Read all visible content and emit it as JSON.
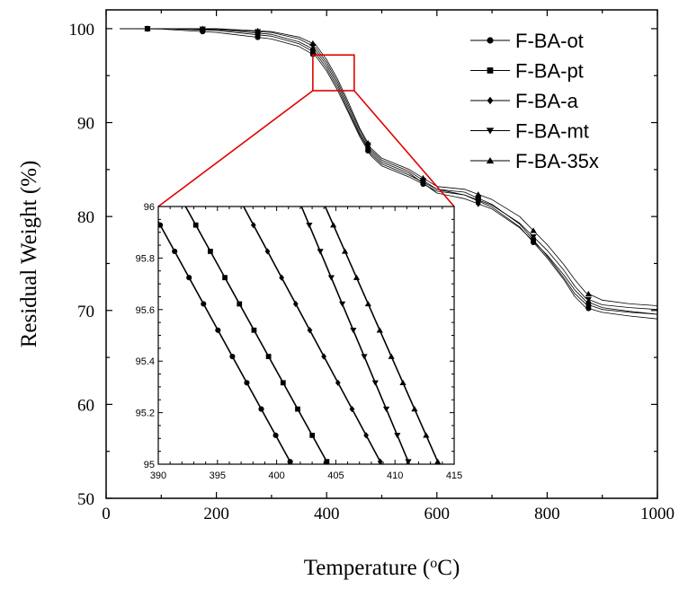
{
  "chart_data": [
    {
      "type": "line",
      "xlabel": "Temperature (",
      "xlabel_super": "o",
      "xlabel_suffix": "C)",
      "ylabel": "Residual Weight (%)",
      "xlim": [
        0,
        1000
      ],
      "ylim": [
        50,
        102
      ],
      "xticks": [
        0,
        200,
        400,
        600,
        800,
        1000
      ],
      "yticks": [
        50,
        60,
        70,
        80,
        90,
        100
      ],
      "legend_position": "top-right",
      "grid": false,
      "zoom_box": {
        "x": [
          375,
          450
        ],
        "y": [
          93.4,
          97.2
        ],
        "color": "#e00000"
      },
      "series": [
        {
          "name": "F-BA-ot",
          "marker": "circle",
          "x": [
            25,
            100,
            200,
            300,
            350,
            380,
            400,
            420,
            440,
            460,
            480,
            500,
            550,
            600,
            650,
            700,
            750,
            800,
            830,
            850,
            870,
            900,
            950,
            1000
          ],
          "y": [
            100,
            99.95,
            99.6,
            98.9,
            98.1,
            97.1,
            95.5,
            93.4,
            91.0,
            88.5,
            86.5,
            85.4,
            84.2,
            82.7,
            82.3,
            81.0,
            78.9,
            75.6,
            73.3,
            71.5,
            70.3,
            69.8,
            69.4,
            69.1
          ]
        },
        {
          "name": "F-BA-pt",
          "marker": "square",
          "x": [
            25,
            100,
            200,
            300,
            350,
            380,
            400,
            420,
            440,
            460,
            480,
            500,
            550,
            600,
            650,
            700,
            750,
            800,
            830,
            850,
            870,
            900,
            950,
            1000
          ],
          "y": [
            100,
            100,
            99.8,
            99.2,
            98.4,
            97.4,
            95.8,
            93.7,
            91.2,
            88.7,
            86.7,
            85.6,
            84.4,
            82.9,
            82.6,
            81.3,
            79.2,
            75.8,
            73.5,
            71.8,
            70.7,
            70.1,
            69.8,
            69.6
          ]
        },
        {
          "name": "F-BA-a",
          "marker": "diamond",
          "x": [
            25,
            100,
            200,
            300,
            350,
            380,
            400,
            420,
            440,
            460,
            480,
            500,
            550,
            600,
            650,
            700,
            750,
            800,
            830,
            850,
            870,
            900,
            950,
            1000
          ],
          "y": [
            100,
            100,
            99.9,
            99.4,
            98.6,
            97.7,
            96.1,
            94.0,
            91.5,
            88.9,
            86.9,
            85.8,
            84.6,
            82.5,
            81.9,
            80.8,
            78.8,
            75.9,
            73.8,
            72.2,
            71.0,
            70.3,
            69.9,
            69.6
          ]
        },
        {
          "name": "F-BA-mt",
          "marker": "triangle-down",
          "x": [
            25,
            100,
            200,
            300,
            350,
            380,
            400,
            420,
            440,
            460,
            480,
            500,
            550,
            600,
            650,
            700,
            750,
            800,
            830,
            850,
            870,
            900,
            950,
            1000
          ],
          "y": [
            100,
            100,
            99.95,
            99.6,
            98.9,
            98.0,
            96.4,
            94.3,
            91.8,
            89.2,
            87.1,
            86.0,
            84.8,
            82.9,
            82.3,
            81.2,
            79.3,
            76.4,
            74.3,
            72.6,
            71.3,
            70.6,
            70.3,
            70.1
          ]
        },
        {
          "name": "F-BA-35x",
          "marker": "triangle-up",
          "x": [
            25,
            100,
            200,
            300,
            350,
            380,
            400,
            420,
            440,
            460,
            480,
            500,
            550,
            600,
            650,
            700,
            750,
            800,
            830,
            850,
            870,
            900,
            950,
            1000
          ],
          "y": [
            100,
            100,
            100,
            99.7,
            99.1,
            98.3,
            96.7,
            94.6,
            92.1,
            89.4,
            87.3,
            86.2,
            85.0,
            83.2,
            82.9,
            81.8,
            80.0,
            77.0,
            74.9,
            73.3,
            71.9,
            71.1,
            70.7,
            70.5
          ]
        }
      ]
    },
    {
      "type": "line",
      "role": "inset",
      "xlim": [
        390,
        415
      ],
      "ylim": [
        95,
        96
      ],
      "xticks": [
        390,
        395,
        400,
        405,
        410,
        415
      ],
      "yticks": [
        95,
        95.2,
        95.4,
        95.6,
        95.8,
        96
      ],
      "series": [
        {
          "name": "F-BA-ot",
          "marker": "circle",
          "x": [
            389.3,
            401.5
          ],
          "y": [
            96.0,
            94.98
          ]
        },
        {
          "name": "F-BA-pt",
          "marker": "square",
          "x": [
            392.3,
            404.6
          ],
          "y": [
            96.0,
            94.98
          ]
        },
        {
          "name": "F-BA-a",
          "marker": "diamond",
          "x": [
            397.2,
            409.1
          ],
          "y": [
            96.0,
            94.98
          ]
        },
        {
          "name": "F-BA-mt",
          "marker": "triangle-down",
          "x": [
            402.1,
            411.4
          ],
          "y": [
            96.0,
            94.98
          ]
        },
        {
          "name": "F-BA-35x",
          "marker": "triangle-up",
          "x": [
            404.1,
            413.9
          ],
          "y": [
            96.0,
            94.98
          ]
        }
      ]
    }
  ]
}
